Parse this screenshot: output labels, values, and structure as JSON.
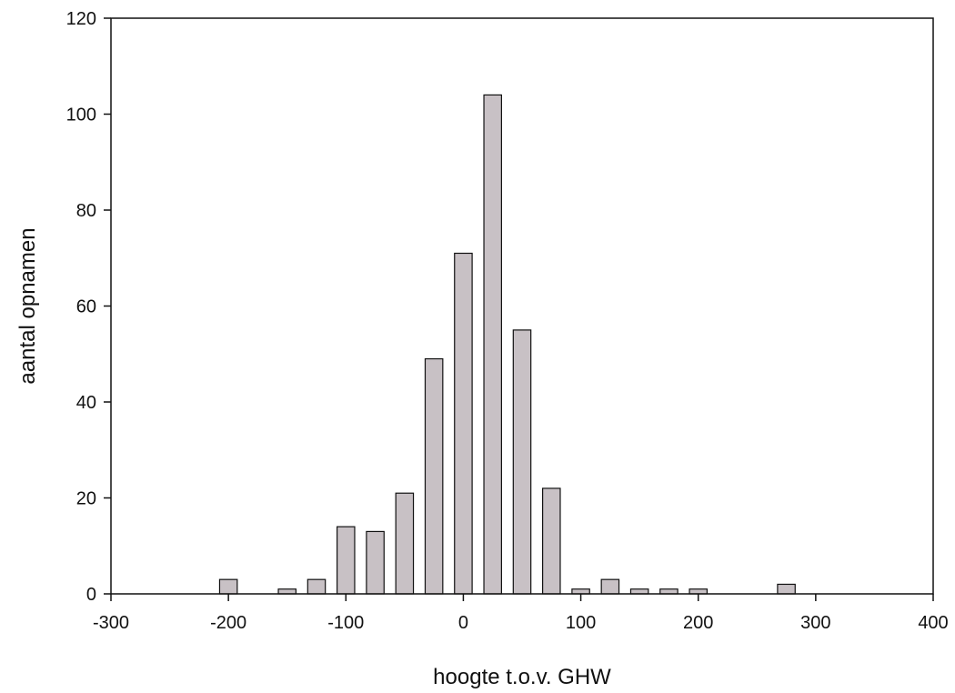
{
  "chart_data": {
    "type": "bar",
    "title": "",
    "xlabel": "hoogte t.o.v. GHW",
    "ylabel": "aantal opnamen",
    "xlim": [
      -300,
      400
    ],
    "ylim": [
      0,
      120
    ],
    "xticks": [
      -300,
      -200,
      -100,
      0,
      100,
      200,
      300,
      400
    ],
    "yticks": [
      0,
      20,
      40,
      60,
      80,
      100,
      120
    ],
    "grid": false,
    "bar_width": 15,
    "colors": {
      "bar_fill": "#c8c1c5",
      "bar_stroke": "#111111",
      "axis": "#111111"
    },
    "bars": [
      {
        "x": -200,
        "y": 3
      },
      {
        "x": -150,
        "y": 1
      },
      {
        "x": -125,
        "y": 3
      },
      {
        "x": -100,
        "y": 14
      },
      {
        "x": -75,
        "y": 13
      },
      {
        "x": -50,
        "y": 21
      },
      {
        "x": -25,
        "y": 49
      },
      {
        "x": 0,
        "y": 71
      },
      {
        "x": 25,
        "y": 104
      },
      {
        "x": 50,
        "y": 55
      },
      {
        "x": 75,
        "y": 22
      },
      {
        "x": 100,
        "y": 1
      },
      {
        "x": 125,
        "y": 3
      },
      {
        "x": 150,
        "y": 1
      },
      {
        "x": 175,
        "y": 1
      },
      {
        "x": 200,
        "y": 1
      },
      {
        "x": 275,
        "y": 2
      }
    ]
  }
}
